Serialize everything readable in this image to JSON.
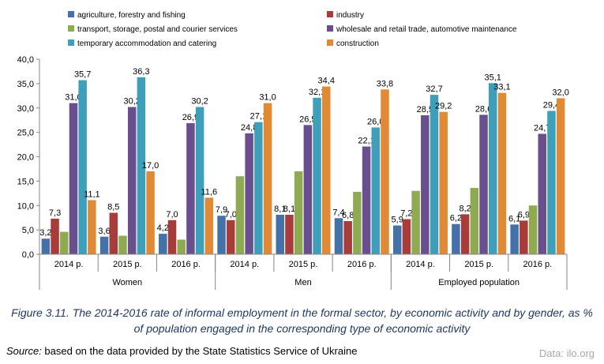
{
  "caption": "Figure 3.11. The 2014-2016 rate of informal employment in the formal sector, by economic activity and by gender, as % of population engaged in the corresponding type of economic activity",
  "source": {
    "lead": "Source:",
    "text": " based on the data provided by the State Statistics Service of Ukraine"
  },
  "credit": "Data: ilo.org",
  "chart_data": {
    "type": "bar",
    "ylim": [
      0,
      40
    ],
    "yticks": [
      "0,0",
      "5,0",
      "10,0",
      "15,0",
      "20,0",
      "25,0",
      "30,0",
      "35,0",
      "40,0"
    ],
    "grid": false,
    "legend_position": "top",
    "groups": [
      {
        "label": "Women",
        "categories": [
          "2014 р.",
          "2015 р.",
          "2016 р."
        ]
      },
      {
        "label": "Men",
        "categories": [
          "2014 р.",
          "2015 р.",
          "2016 р."
        ]
      },
      {
        "label": "Employed population",
        "categories": [
          "2014 р.",
          "2015 р.",
          "2016 р."
        ]
      }
    ],
    "series": [
      {
        "name": "agriculture, forestry and fishing",
        "color": "#4472a8",
        "values": [
          3.2,
          3.6,
          4.2,
          7.9,
          8.1,
          7.4,
          5.9,
          6.2,
          6.1
        ],
        "labels": [
          "3,2",
          "3,6",
          "4,2",
          "7,9",
          "8,1",
          "7,4",
          "5,9",
          "6,2",
          "6,1"
        ]
      },
      {
        "name": "industry",
        "color": "#a83c3a",
        "values": [
          7.3,
          8.5,
          7.0,
          7.0,
          8.1,
          6.8,
          7.2,
          8.2,
          6.9
        ],
        "labels": [
          "7,3",
          "8,5",
          "7,0",
          "7,0",
          "8,1",
          "6,8",
          "7,2",
          "8,2",
          "6,9"
        ]
      },
      {
        "name": "transport, storage, postal and courier services",
        "color": "#8fab52",
        "values": [
          4.6,
          3.8,
          3.0,
          16.0,
          17.0,
          12.8,
          13.0,
          13.6,
          10.0
        ],
        "labels": [
          "",
          "",
          "",
          "",
          "",
          "",
          "",
          "",
          ""
        ]
      },
      {
        "name": "wholesale and retail trade, automotive maintenance",
        "color": "#6a4f8e",
        "values": [
          31.0,
          30.2,
          26.9,
          24.8,
          26.5,
          22.1,
          28.5,
          28.6,
          24.7
        ],
        "labels": [
          "31,0",
          "30,2",
          "26,9",
          "24,8",
          "26,5",
          "22,1",
          "28,5",
          "28,6",
          "24,7"
        ]
      },
      {
        "name": "temporary accommodation and catering",
        "color": "#3e9fba",
        "values": [
          35.7,
          36.3,
          30.2,
          27.1,
          32.1,
          26.0,
          32.7,
          35.1,
          29.4
        ],
        "labels": [
          "35,7",
          "36,3",
          "30,2",
          "27,1",
          "32,1",
          "26,0",
          "32,7",
          "35,1",
          "29,4"
        ]
      },
      {
        "name": "construction",
        "color": "#e08a35",
        "values": [
          11.1,
          17.0,
          11.6,
          31.0,
          34.4,
          33.8,
          29.2,
          33.1,
          32.0
        ],
        "labels": [
          "11,1",
          "17,0",
          "11,6",
          "31,0",
          "34,4",
          "33,8",
          "29,2",
          "33,1",
          "32,0"
        ]
      }
    ]
  }
}
